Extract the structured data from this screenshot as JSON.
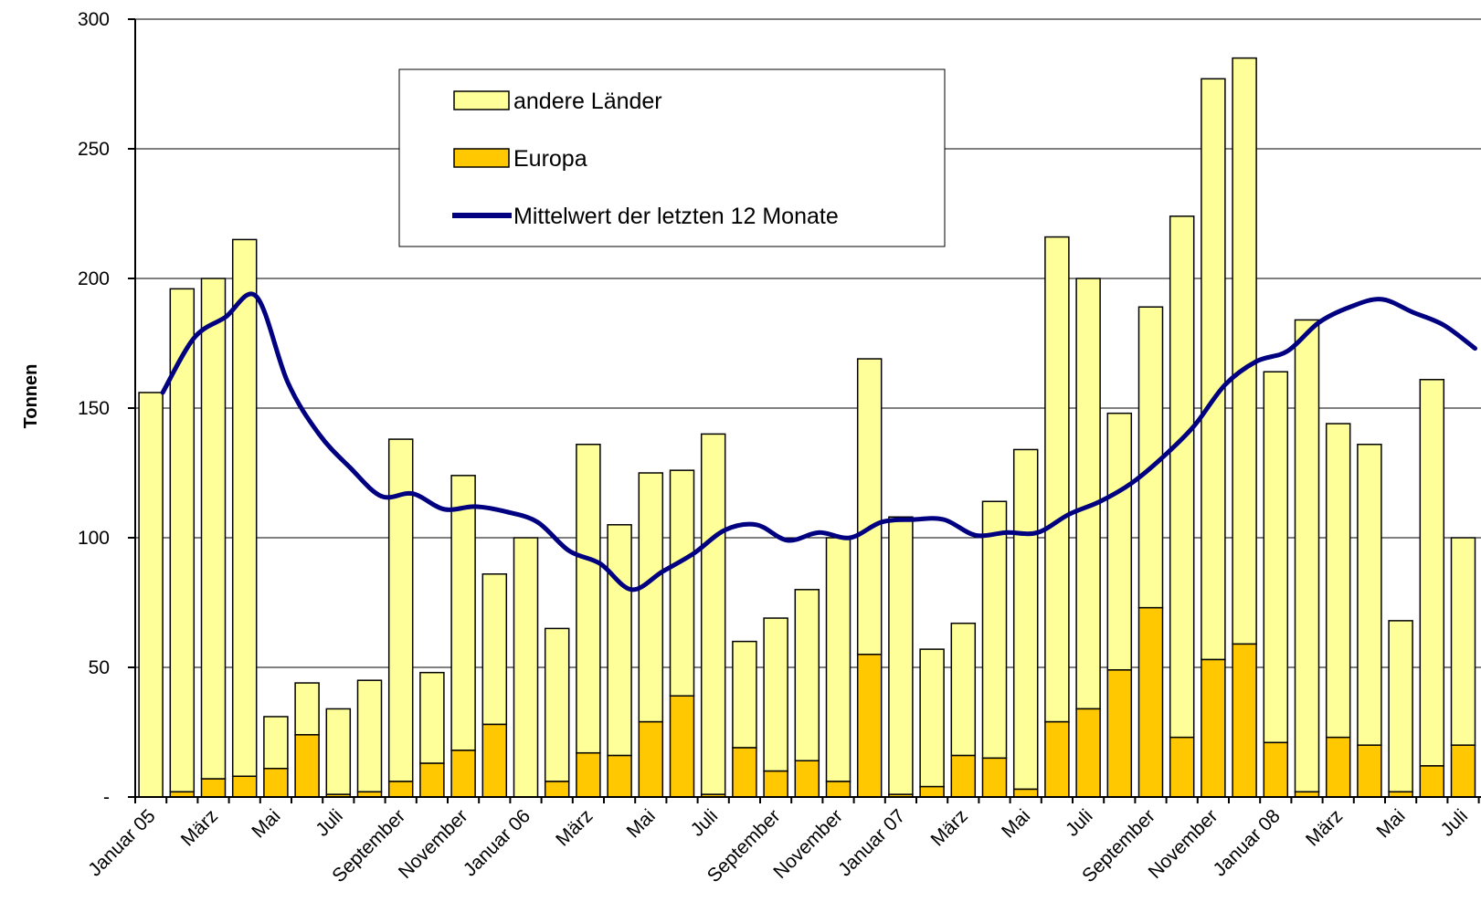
{
  "chart_data": {
    "type": "bar",
    "stacked": true,
    "ylabel": "Tonnen",
    "ylim": [
      0,
      300
    ],
    "yticks": [
      {
        "value": 0,
        "label": "-"
      },
      {
        "value": 50,
        "label": "50"
      },
      {
        "value": 100,
        "label": "100"
      },
      {
        "value": 150,
        "label": "150"
      },
      {
        "value": 200,
        "label": "200"
      },
      {
        "value": 250,
        "label": "250"
      },
      {
        "value": 300,
        "label": "300"
      }
    ],
    "grid": true,
    "legend_position": "top-center",
    "x_tick_labels": [
      "Januar 05",
      "März",
      "Mai",
      "Juli",
      "September",
      "November",
      "Januar 06",
      "März",
      "Mai",
      "Juli",
      "September",
      "November",
      "Januar 07",
      "März",
      "Mai",
      "Juli",
      "September",
      "November",
      "Januar 08",
      "März",
      "Mai",
      "Juli"
    ],
    "x_tick_every": 2,
    "series": [
      {
        "name": "Europa",
        "color": "#FFC800",
        "values": [
          0,
          2,
          7,
          8,
          11,
          24,
          1,
          2,
          6,
          13,
          18,
          28,
          0,
          6,
          17,
          16,
          29,
          39,
          1,
          19,
          10,
          14,
          6,
          55,
          1,
          4,
          16,
          15,
          3,
          29,
          34,
          49,
          73,
          23,
          53,
          59,
          21,
          2,
          23,
          20,
          2,
          12,
          20
        ]
      },
      {
        "name": "andere Länder",
        "color": "#FFFF99",
        "values": [
          156,
          194,
          193,
          207,
          20,
          20,
          33,
          43,
          132,
          35,
          106,
          58,
          100,
          59,
          119,
          89,
          96,
          87,
          139,
          41,
          59,
          66,
          94,
          114,
          107,
          53,
          51,
          99,
          131,
          187,
          166,
          99,
          116,
          201,
          224,
          226,
          143,
          182,
          121,
          116,
          66,
          149,
          80
        ]
      },
      {
        "name": "Mittelwert der letzten 12 Monate",
        "type": "line",
        "color": "#000080",
        "values": [
          156,
          177,
          185,
          193,
          160,
          140,
          127,
          116,
          117,
          111,
          112,
          110,
          106,
          95,
          90,
          80,
          87,
          94,
          103,
          105,
          99,
          102,
          100,
          106,
          107,
          107,
          101,
          102,
          102,
          109,
          114,
          121,
          131,
          143,
          159,
          168,
          172,
          183,
          189,
          192,
          187,
          182,
          173
        ]
      }
    ]
  },
  "legend": {
    "items": [
      {
        "label": "andere Länder",
        "swatch": "box",
        "color": "#FFFF99"
      },
      {
        "label": "Europa",
        "swatch": "box",
        "color": "#FFC800"
      },
      {
        "label": "Mittelwert der letzten 12 Monate",
        "swatch": "line",
        "color": "#000080"
      }
    ]
  }
}
